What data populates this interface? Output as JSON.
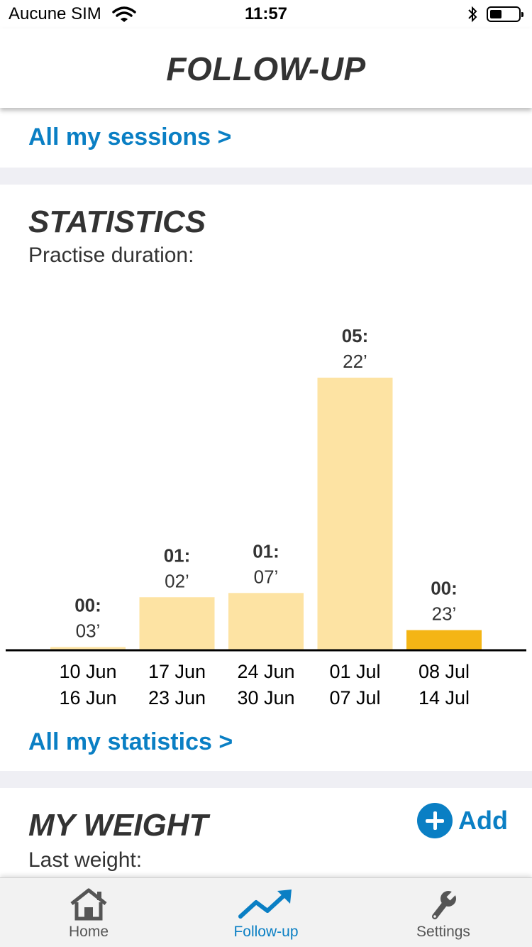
{
  "status_bar": {
    "carrier": "Aucune SIM",
    "time": "11:57"
  },
  "header": {
    "title": "FOLLOW-UP"
  },
  "sessions_link": "All my sessions >",
  "statistics": {
    "title": "STATISTICS",
    "subtitle": "Practise duration:",
    "all_link": "All my statistics >"
  },
  "chart_data": {
    "type": "bar",
    "categories": [
      [
        "10 Jun",
        "16 Jun"
      ],
      [
        "17 Jun",
        "23 Jun"
      ],
      [
        "24 Jun",
        "30 Jun"
      ],
      [
        "01 Jul",
        "07 Jul"
      ],
      [
        "08 Jul",
        "14 Jul"
      ]
    ],
    "values_minutes": [
      3,
      62,
      67,
      322,
      23
    ],
    "value_labels": [
      [
        "00:",
        "03’"
      ],
      [
        "01:",
        "02’"
      ],
      [
        "01:",
        "07’"
      ],
      [
        "05:",
        "22’"
      ],
      [
        "00:",
        "23’"
      ]
    ],
    "highlight_index": 4,
    "colors": {
      "bar": "#fde3a3",
      "highlight": "#f4b515",
      "axis": "#000000"
    },
    "ylim": [
      0,
      322
    ],
    "grid": false
  },
  "weight": {
    "title": "MY WEIGHT",
    "subtitle": "Last weight:",
    "add_label": "Add"
  },
  "tab_bar": {
    "tabs": [
      {
        "label": "Home",
        "icon": "home-icon",
        "active": false
      },
      {
        "label": "Follow-up",
        "icon": "trend-up-icon",
        "active": true
      },
      {
        "label": "Settings",
        "icon": "wrench-icon",
        "active": false
      }
    ]
  },
  "colors": {
    "accent": "#0a7fc4",
    "text": "#333333",
    "divider": "#efeff4"
  }
}
